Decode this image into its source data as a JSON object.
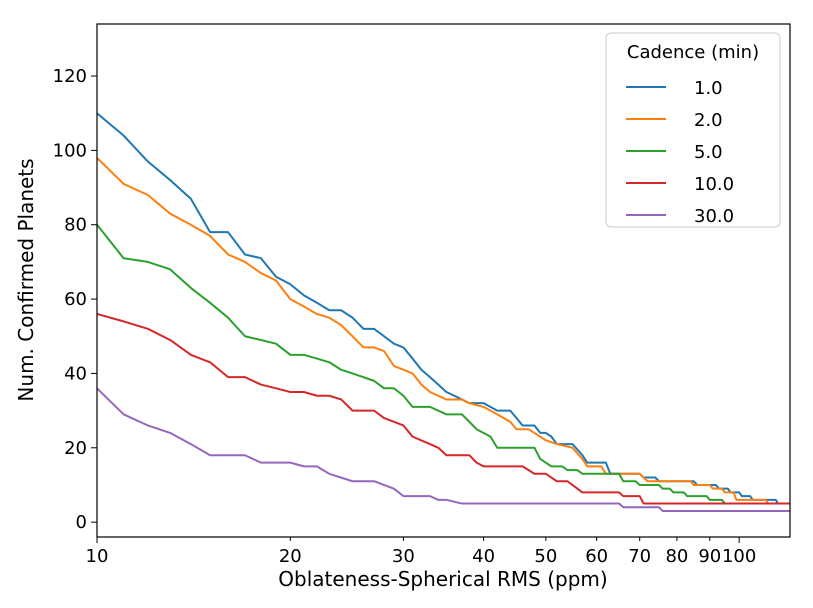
{
  "chart_data": {
    "type": "line",
    "title": "",
    "xlabel": "Oblateness-Spherical RMS (ppm)",
    "ylabel": "Num. Confirmed Planets",
    "xscale": "log",
    "xlim": [
      10,
      120
    ],
    "ylim": [
      -4,
      134
    ],
    "grid": false,
    "x_ticks": [
      10,
      20,
      30,
      40,
      50,
      60,
      70,
      80,
      90,
      100
    ],
    "x_tick_labels": [
      "10",
      "20",
      "30",
      "40",
      "50",
      "60",
      "70",
      "80",
      "90",
      "100"
    ],
    "y_ticks": [
      0,
      20,
      40,
      60,
      80,
      100,
      120
    ],
    "y_tick_labels": [
      "0",
      "20",
      "40",
      "60",
      "80",
      "100",
      "120"
    ],
    "legend": {
      "title": "Cadence (min)",
      "position": "top-right"
    },
    "series": [
      {
        "name": "1.0",
        "color": "#1f77b4",
        "points": [
          [
            10,
            110
          ],
          [
            11,
            104
          ],
          [
            12,
            97
          ],
          [
            13,
            92
          ],
          [
            14,
            87
          ],
          [
            15,
            78
          ],
          [
            16,
            78
          ],
          [
            17,
            72
          ],
          [
            18,
            71
          ],
          [
            19,
            66
          ],
          [
            20,
            64
          ],
          [
            21,
            61
          ],
          [
            22,
            59
          ],
          [
            23,
            57
          ],
          [
            24,
            57
          ],
          [
            25,
            55
          ],
          [
            26,
            52
          ],
          [
            27,
            52
          ],
          [
            28,
            50
          ],
          [
            29,
            48
          ],
          [
            30,
            47
          ],
          [
            31,
            44
          ],
          [
            32,
            41
          ],
          [
            33,
            39
          ],
          [
            34,
            37
          ],
          [
            35,
            35
          ],
          [
            36,
            34
          ],
          [
            37,
            33
          ],
          [
            38,
            32
          ],
          [
            40,
            32
          ],
          [
            42,
            30
          ],
          [
            44,
            30
          ],
          [
            45,
            28
          ],
          [
            46,
            26
          ],
          [
            48,
            26
          ],
          [
            49,
            24
          ],
          [
            50,
            24
          ],
          [
            51,
            23
          ],
          [
            52,
            21
          ],
          [
            55,
            21
          ],
          [
            57,
            18
          ],
          [
            58,
            16
          ],
          [
            62,
            16
          ],
          [
            63,
            13
          ],
          [
            70,
            13
          ],
          [
            71,
            12
          ],
          [
            74,
            12
          ],
          [
            75,
            11
          ],
          [
            85,
            11
          ],
          [
            86,
            10
          ],
          [
            92,
            10
          ],
          [
            93,
            9
          ],
          [
            96,
            9
          ],
          [
            97,
            8
          ],
          [
            100,
            8
          ],
          [
            101,
            7
          ],
          [
            104,
            7
          ],
          [
            105,
            6
          ],
          [
            114,
            6
          ],
          [
            115,
            5
          ],
          [
            120,
            5
          ]
        ]
      },
      {
        "name": "2.0",
        "color": "#ff7f0e",
        "points": [
          [
            10,
            98
          ],
          [
            11,
            91
          ],
          [
            12,
            88
          ],
          [
            13,
            83
          ],
          [
            14,
            80
          ],
          [
            15,
            77
          ],
          [
            16,
            72
          ],
          [
            17,
            70
          ],
          [
            18,
            67
          ],
          [
            19,
            65
          ],
          [
            20,
            60
          ],
          [
            21,
            58
          ],
          [
            22,
            56
          ],
          [
            23,
            55
          ],
          [
            24,
            53
          ],
          [
            25,
            50
          ],
          [
            26,
            47
          ],
          [
            27,
            47
          ],
          [
            28,
            46
          ],
          [
            29,
            42
          ],
          [
            30,
            41
          ],
          [
            31,
            40
          ],
          [
            32,
            37
          ],
          [
            33,
            35
          ],
          [
            34,
            34
          ],
          [
            35,
            33
          ],
          [
            37,
            33
          ],
          [
            38,
            32
          ],
          [
            40,
            31
          ],
          [
            42,
            29
          ],
          [
            44,
            27
          ],
          [
            45,
            25
          ],
          [
            47,
            25
          ],
          [
            48,
            24
          ],
          [
            50,
            22
          ],
          [
            52,
            21
          ],
          [
            55,
            20
          ],
          [
            57,
            17
          ],
          [
            58,
            15
          ],
          [
            61,
            15
          ],
          [
            62,
            13
          ],
          [
            70,
            13
          ],
          [
            71,
            12
          ],
          [
            72,
            11
          ],
          [
            84,
            11
          ],
          [
            85,
            10
          ],
          [
            90,
            10
          ],
          [
            91,
            9
          ],
          [
            94,
            9
          ],
          [
            95,
            8
          ],
          [
            98,
            8
          ],
          [
            99,
            6
          ],
          [
            110,
            6
          ],
          [
            111,
            5
          ],
          [
            120,
            5
          ]
        ]
      },
      {
        "name": "5.0",
        "color": "#2ca02c",
        "points": [
          [
            10,
            80
          ],
          [
            11,
            71
          ],
          [
            12,
            70
          ],
          [
            13,
            68
          ],
          [
            14,
            63
          ],
          [
            15,
            59
          ],
          [
            16,
            55
          ],
          [
            17,
            50
          ],
          [
            18,
            49
          ],
          [
            19,
            48
          ],
          [
            20,
            45
          ],
          [
            21,
            45
          ],
          [
            22,
            44
          ],
          [
            23,
            43
          ],
          [
            24,
            41
          ],
          [
            25,
            40
          ],
          [
            26,
            39
          ],
          [
            27,
            38
          ],
          [
            28,
            36
          ],
          [
            29,
            36
          ],
          [
            30,
            34
          ],
          [
            31,
            31
          ],
          [
            33,
            31
          ],
          [
            35,
            29
          ],
          [
            37,
            29
          ],
          [
            38,
            27
          ],
          [
            39,
            25
          ],
          [
            41,
            23
          ],
          [
            42,
            20
          ],
          [
            48,
            20
          ],
          [
            49,
            17
          ],
          [
            50,
            16
          ],
          [
            51,
            15
          ],
          [
            53,
            15
          ],
          [
            54,
            14
          ],
          [
            56,
            14
          ],
          [
            57,
            13
          ],
          [
            65,
            13
          ],
          [
            66,
            11
          ],
          [
            69,
            11
          ],
          [
            70,
            10
          ],
          [
            75,
            10
          ],
          [
            76,
            9
          ],
          [
            78,
            9
          ],
          [
            79,
            8
          ],
          [
            82,
            8
          ],
          [
            83,
            7
          ],
          [
            89,
            7
          ],
          [
            90,
            6
          ],
          [
            94,
            6
          ],
          [
            95,
            5
          ],
          [
            120,
            5
          ]
        ]
      },
      {
        "name": "10.0",
        "color": "#d62728",
        "points": [
          [
            10,
            56
          ],
          [
            11,
            54
          ],
          [
            12,
            52
          ],
          [
            13,
            49
          ],
          [
            14,
            45
          ],
          [
            15,
            43
          ],
          [
            16,
            39
          ],
          [
            17,
            39
          ],
          [
            18,
            37
          ],
          [
            19,
            36
          ],
          [
            20,
            35
          ],
          [
            21,
            35
          ],
          [
            22,
            34
          ],
          [
            23,
            34
          ],
          [
            24,
            33
          ],
          [
            25,
            30
          ],
          [
            27,
            30
          ],
          [
            28,
            28
          ],
          [
            29,
            27
          ],
          [
            30,
            26
          ],
          [
            31,
            23
          ],
          [
            33,
            21
          ],
          [
            34,
            20
          ],
          [
            35,
            18
          ],
          [
            38,
            18
          ],
          [
            39,
            16
          ],
          [
            40,
            15
          ],
          [
            46,
            15
          ],
          [
            47,
            14
          ],
          [
            48,
            13
          ],
          [
            50,
            13
          ],
          [
            51,
            12
          ],
          [
            52,
            11
          ],
          [
            54,
            11
          ],
          [
            55,
            10
          ],
          [
            56,
            9
          ],
          [
            57,
            8
          ],
          [
            65,
            8
          ],
          [
            66,
            7
          ],
          [
            70,
            7
          ],
          [
            71,
            5
          ],
          [
            120,
            5
          ]
        ]
      },
      {
        "name": "30.0",
        "color": "#9467bd",
        "points": [
          [
            10,
            36
          ],
          [
            11,
            29
          ],
          [
            12,
            26
          ],
          [
            13,
            24
          ],
          [
            14,
            21
          ],
          [
            15,
            18
          ],
          [
            17,
            18
          ],
          [
            18,
            16
          ],
          [
            20,
            16
          ],
          [
            21,
            15
          ],
          [
            22,
            15
          ],
          [
            23,
            13
          ],
          [
            25,
            11
          ],
          [
            27,
            11
          ],
          [
            29,
            9
          ],
          [
            30,
            7
          ],
          [
            33,
            7
          ],
          [
            34,
            6
          ],
          [
            35,
            6
          ],
          [
            37,
            5
          ],
          [
            65,
            5
          ],
          [
            66,
            4
          ],
          [
            75,
            4
          ],
          [
            76,
            3
          ],
          [
            120,
            3
          ]
        ]
      }
    ]
  }
}
